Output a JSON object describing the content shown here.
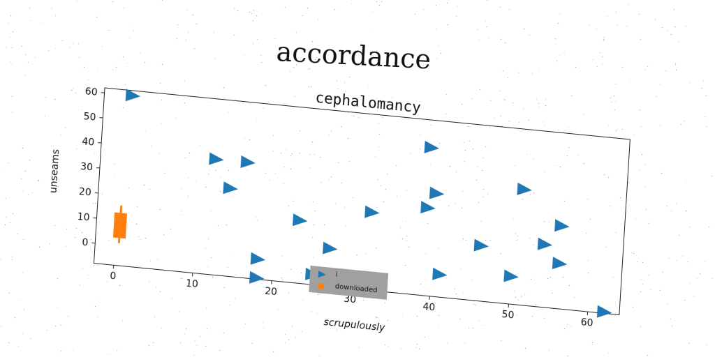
{
  "suptitle": "accordance",
  "chart_data": {
    "type": "scatter",
    "title": "cephalomancy",
    "xlabel": "scrupulously",
    "ylabel": "unseams",
    "xlim": [
      -2.5,
      64
    ],
    "ylim": [
      -8,
      62
    ],
    "xticks": [
      0,
      10,
      20,
      30,
      40,
      50,
      60
    ],
    "yticks": [
      0,
      10,
      20,
      30,
      40,
      50,
      60
    ],
    "grid": false,
    "legend_position": "lower-center",
    "series": [
      {
        "name": "i",
        "marker": "triangle-right",
        "color": "#1f77b4",
        "points": [
          [
            1,
            60
          ],
          [
            12,
            38
          ],
          [
            16,
            38
          ],
          [
            14,
            27
          ],
          [
            23,
            17
          ],
          [
            27,
            7
          ],
          [
            18,
            0
          ],
          [
            18,
            -10
          ],
          [
            25,
            -4
          ],
          [
            32,
            23
          ],
          [
            39,
            51
          ],
          [
            40,
            33
          ],
          [
            39,
            27
          ],
          [
            41,
            1
          ],
          [
            46,
            14
          ],
          [
            50,
            3
          ],
          [
            51,
            38
          ],
          [
            54,
            17
          ],
          [
            56,
            25
          ],
          [
            56,
            10
          ],
          [
            62,
            -12
          ]
        ]
      },
      {
        "name": "downloaded",
        "marker": "box",
        "color": "#ff7f0e",
        "box": {
          "x": 0.5,
          "whisker_low": 1,
          "q1": 3,
          "q3": 13,
          "whisker_high": 16
        }
      }
    ]
  }
}
